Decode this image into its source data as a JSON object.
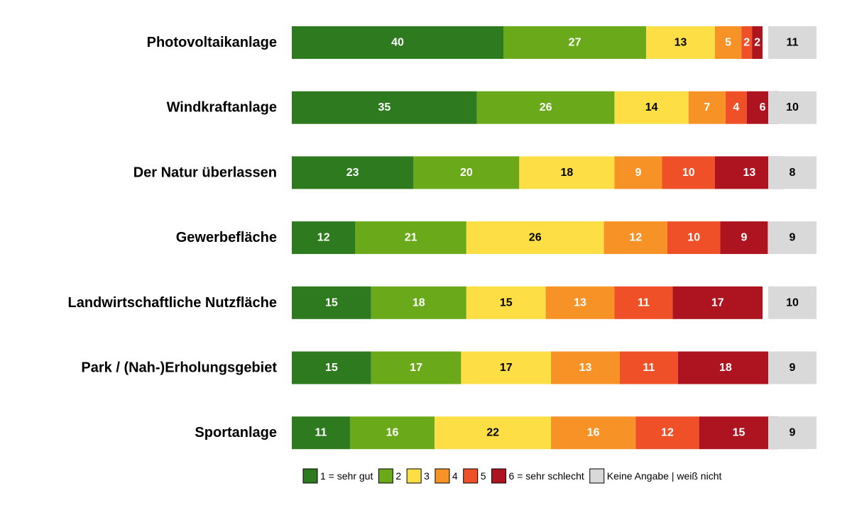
{
  "chart_data": {
    "type": "bar",
    "orientation": "horizontal",
    "stacked": true,
    "grid": false,
    "legend_position": "bottom",
    "categories": [
      "Photovoltaikanlage",
      "Windkraftanlage",
      "Der Natur überlassen",
      "Gewerbefläche",
      "Landwirtschaftliche Nutzfläche",
      "Park / (Nah-)Erholungsgebiet",
      "Sportanlage"
    ],
    "series": [
      {
        "name": "1 = sehr gut",
        "color": "#2d7a1f",
        "label_color": "#ffffff",
        "values": [
          40,
          35,
          23,
          12,
          15,
          15,
          11
        ]
      },
      {
        "name": "2",
        "color": "#6aaa1a",
        "label_color": "#ffffff",
        "values": [
          27,
          26,
          20,
          21,
          18,
          17,
          16
        ]
      },
      {
        "name": "3",
        "color": "#fddf45",
        "label_color": "#000000",
        "values": [
          13,
          14,
          18,
          26,
          15,
          17,
          22
        ]
      },
      {
        "name": "4",
        "color": "#f79227",
        "label_color": "#ffffff",
        "values": [
          5,
          7,
          9,
          12,
          13,
          13,
          16
        ]
      },
      {
        "name": "5",
        "color": "#ef5027",
        "label_color": "#ffffff",
        "values": [
          2,
          4,
          10,
          10,
          11,
          11,
          12
        ]
      },
      {
        "name": "6 = sehr schlecht",
        "color": "#ae1420",
        "label_color": "#ffffff",
        "values": [
          2,
          6,
          13,
          9,
          17,
          18,
          15
        ]
      }
    ],
    "separate_series": {
      "name": "Keine Angabe | weiß nicht",
      "color": "#d9d9d9",
      "label_color": "#000000",
      "values": [
        11,
        10,
        8,
        9,
        10,
        9,
        9
      ]
    }
  }
}
